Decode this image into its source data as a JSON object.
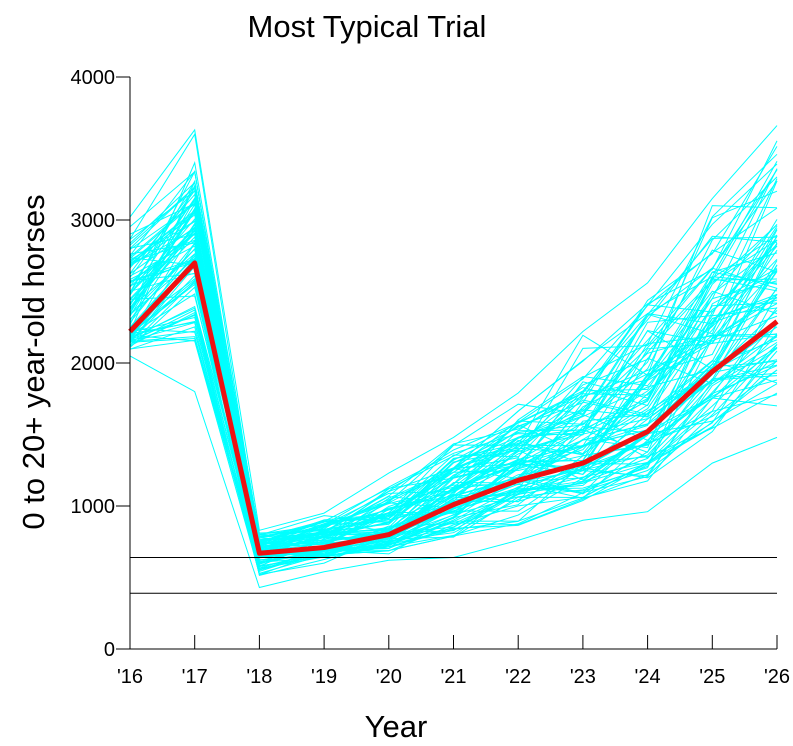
{
  "chart_data": {
    "type": "line",
    "title": "Most Typical Trial",
    "xlabel": "Year",
    "ylabel": "0 to 20+ year-old horses",
    "x": [
      "'16",
      "'17",
      "'18",
      "'19",
      "'20",
      "'21",
      "'22",
      "'23",
      "'24",
      "'25",
      "'26"
    ],
    "ylim": [
      0,
      4000
    ],
    "yticks": [
      "0",
      "1000",
      "2000",
      "3000",
      "4000"
    ],
    "grid": false,
    "legend": "none",
    "highlight_series": {
      "values": [
        2220,
        2700,
        670,
        710,
        800,
        1010,
        1180,
        1300,
        1520,
        1940,
        2290
      ],
      "color": "#ee1111"
    },
    "reference_lines": [
      640,
      390
    ],
    "trials_color": "#00ffff",
    "trials_envelope": {
      "min": [
        2050,
        1800,
        430,
        540,
        620,
        640,
        760,
        900,
        960,
        1300,
        1480
      ],
      "max": [
        3020,
        3630,
        830,
        950,
        1230,
        1480,
        1790,
        2220,
        2560,
        3150,
        3660
      ]
    },
    "trials_count": 100
  }
}
